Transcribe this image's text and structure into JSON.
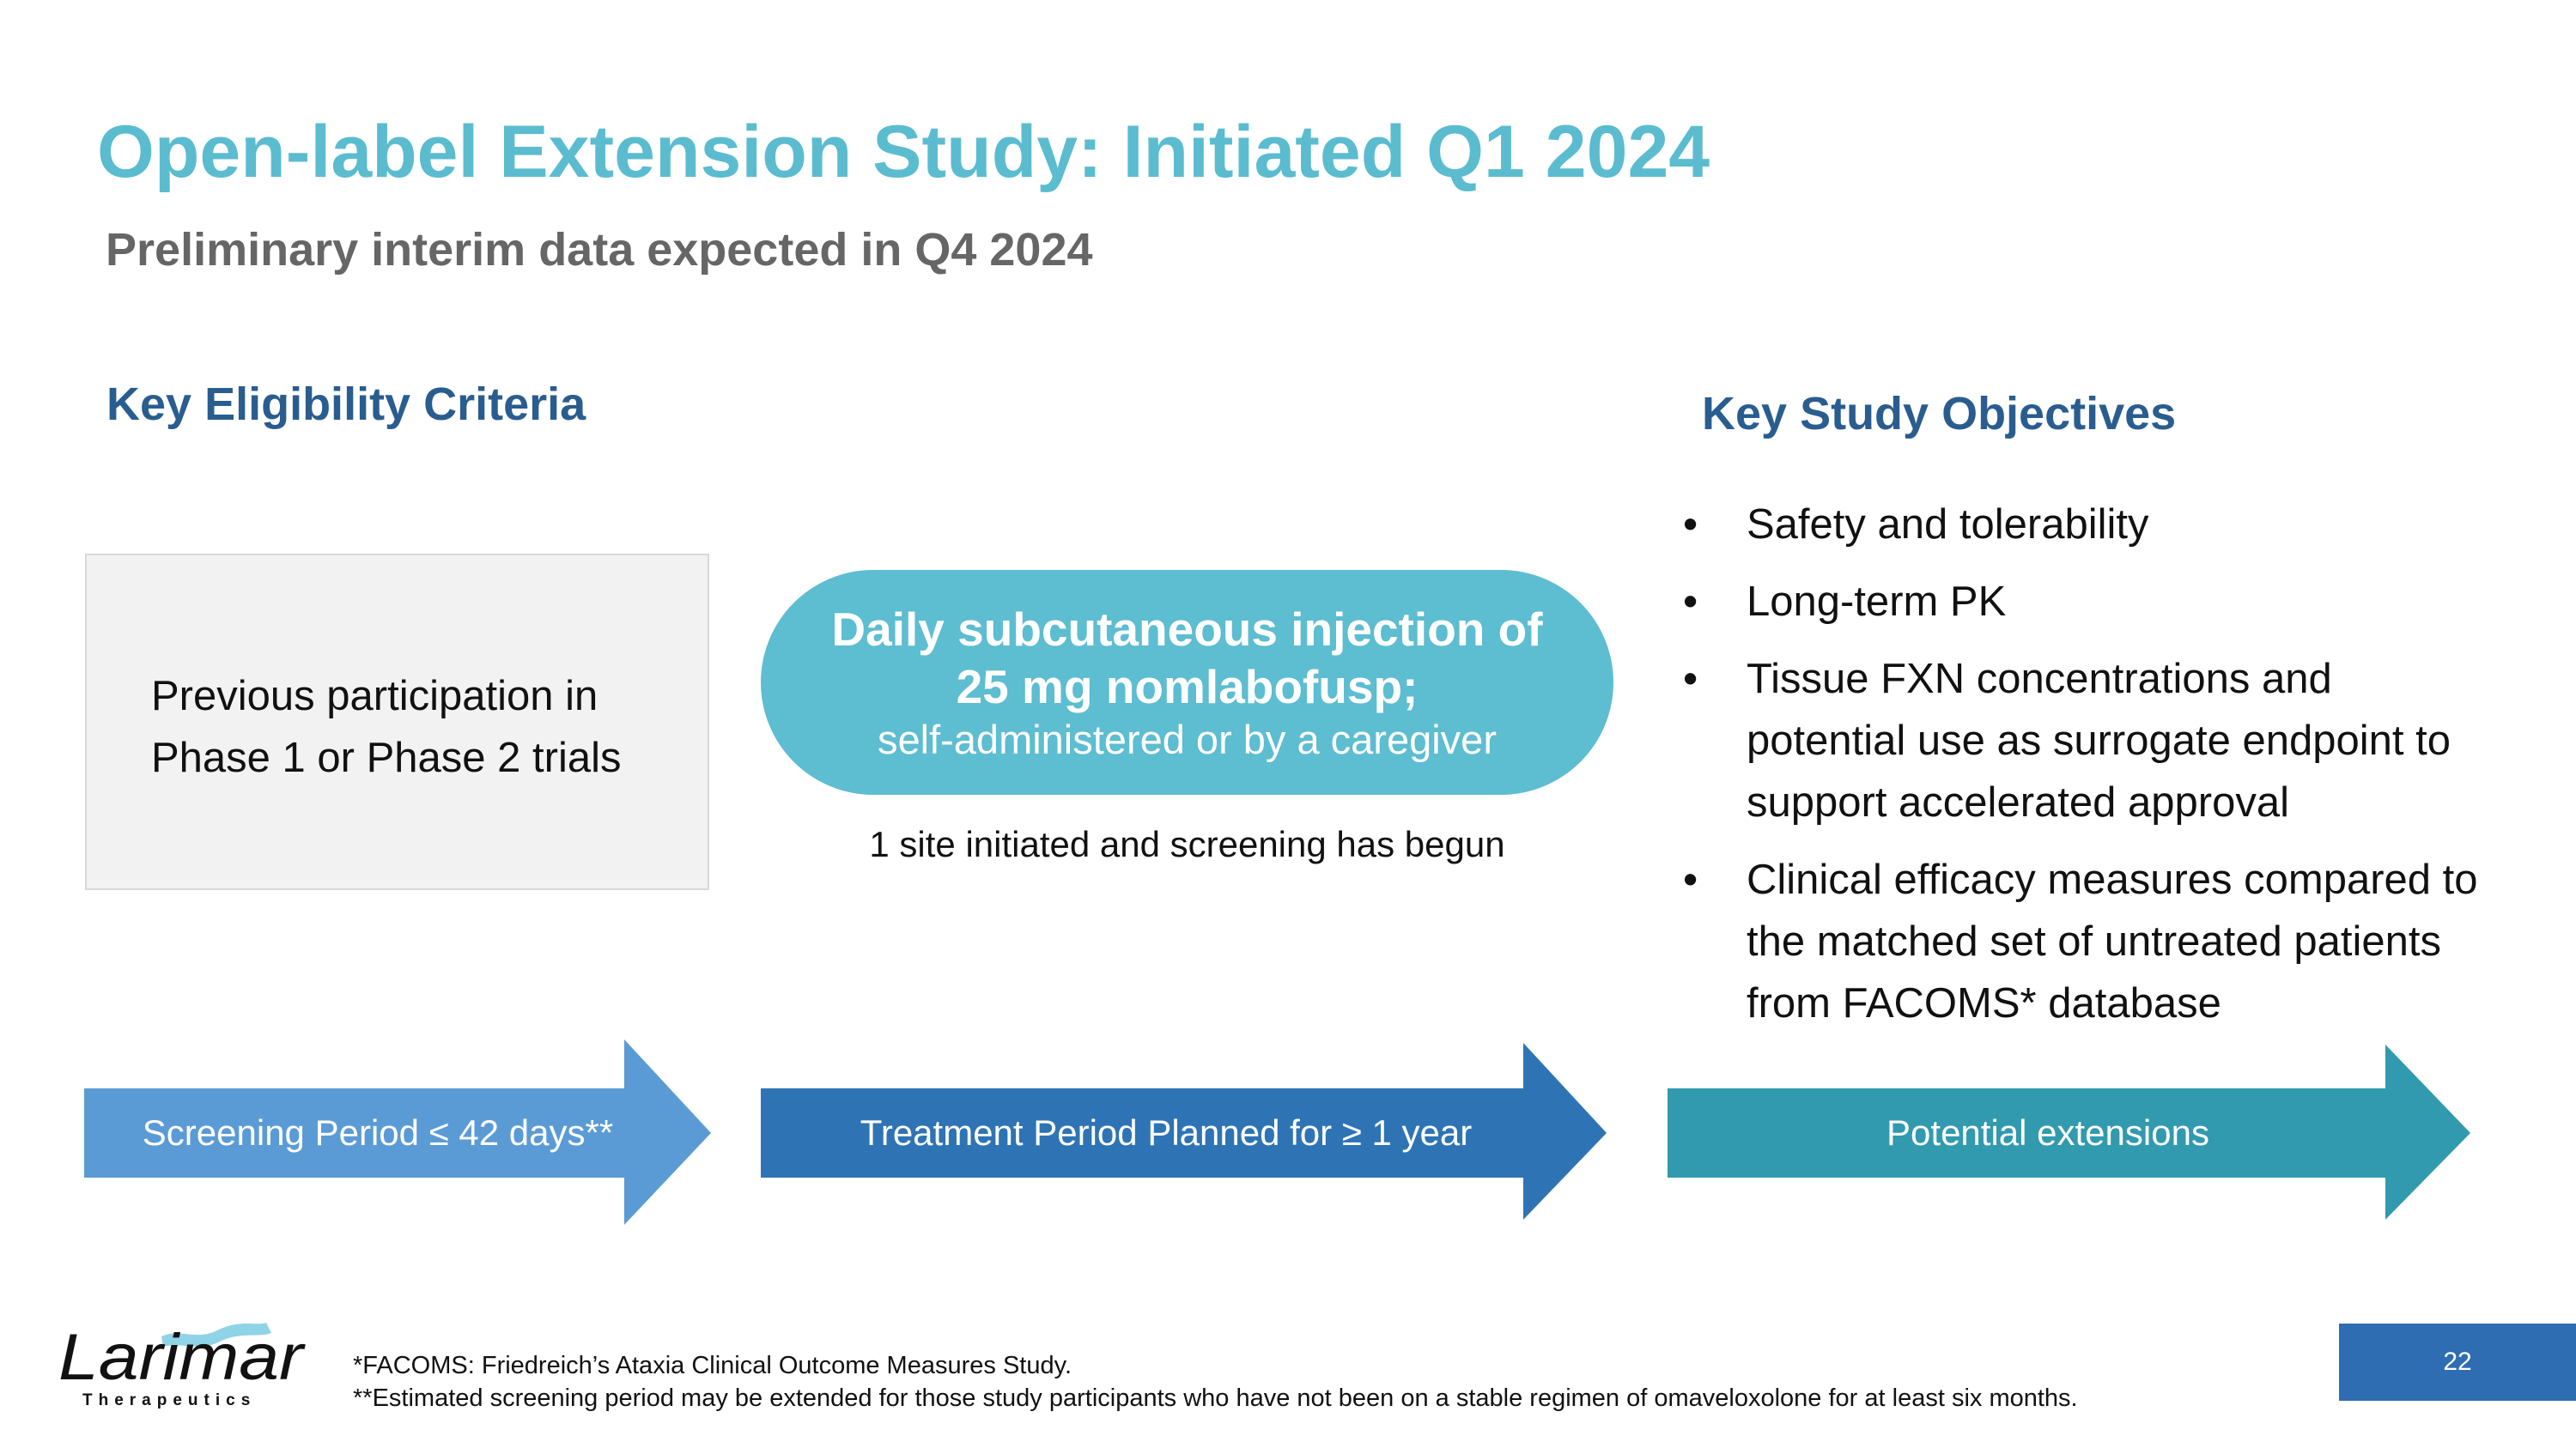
{
  "title": "Open-label Extension Study: Initiated Q1 2024",
  "subtitle": "Preliminary interim data expected in Q4 2024",
  "eligibility": {
    "heading": "Key Eligibility Criteria",
    "lines": [
      "Previous participation in",
      "Phase 1 or Phase 2 trials"
    ]
  },
  "dosing": {
    "line1": "Daily subcutaneous injection of",
    "line2": "25 mg nomlabofusp;",
    "line3": "self-administered or by a caregiver",
    "status": "1 site initiated and screening has begun"
  },
  "objectives": {
    "heading": "Key Study Objectives",
    "items": [
      "Safety and tolerability",
      "Long-term PK",
      "Tissue FXN concentrations and potential use as surrogate endpoint to support accelerated approval",
      "Clinical efficacy measures compared to the matched set of untreated patients from FACOMS* database"
    ]
  },
  "timeline": [
    {
      "label": "Screening Period ≤ 42 days**",
      "color": "#5b9bd5"
    },
    {
      "label": "Treatment Period Planned for ≥ 1 year",
      "color": "#2e74b5"
    },
    {
      "label": "Potential extensions",
      "color": "#319aae"
    }
  ],
  "footnotes": [
    "*FACOMS: Friedreich’s Ataxia Clinical Outcome Measures Study.",
    "**Estimated screening period may be extended  for those study participants who have not been on a stable regimen of omaveloxolone for at least six months."
  ],
  "logo": {
    "name": "Larimar",
    "tagline": "Therapeutics"
  },
  "page_number": "22"
}
